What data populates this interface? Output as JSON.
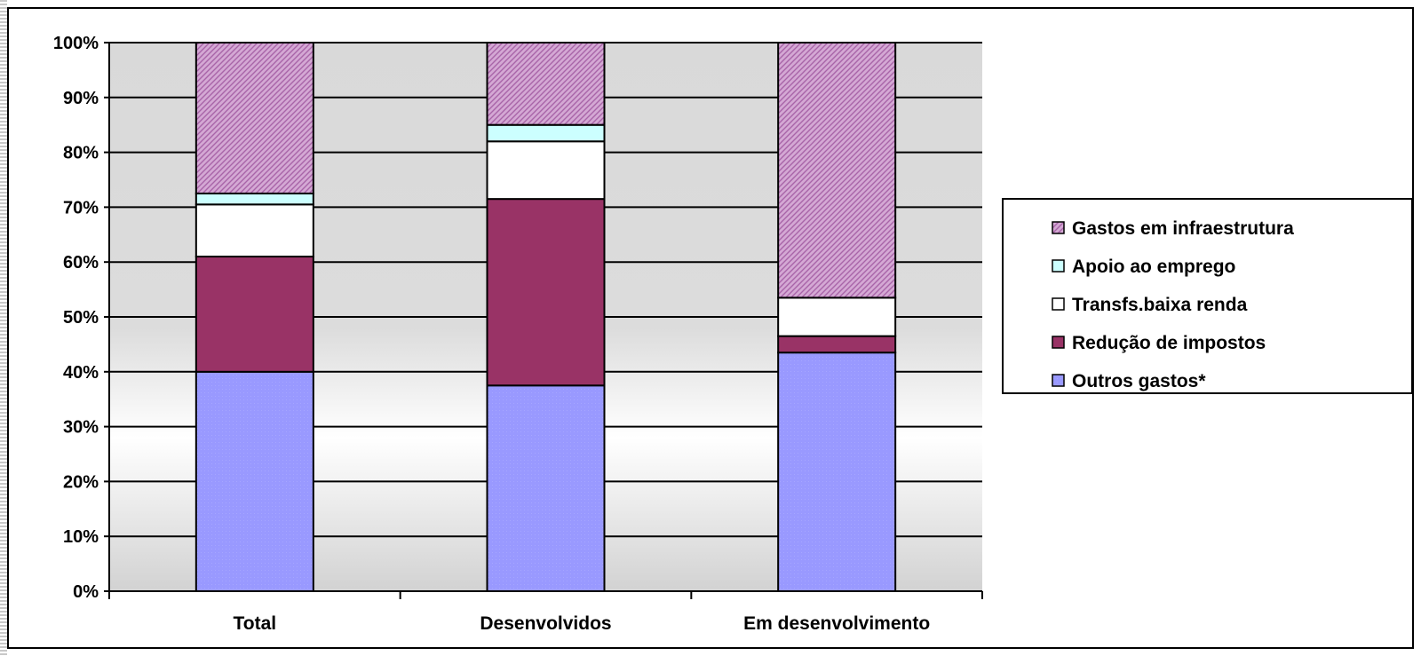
{
  "chart_data": {
    "type": "bar",
    "stacked": true,
    "percent_stacked": true,
    "categories": [
      "Total",
      "Desenvolvidos",
      "Em desenvolvimento"
    ],
    "series": [
      {
        "name": "Outros gastos*",
        "values": [
          40,
          37.5,
          43.5
        ],
        "color": "#9999ff"
      },
      {
        "name": "Redução de impostos",
        "values": [
          21,
          34,
          3
        ],
        "color": "#993366"
      },
      {
        "name": "Transfs.baixa renda",
        "values": [
          9.5,
          10.5,
          7
        ],
        "color": "#ffffff"
      },
      {
        "name": "Apoio ao emprego",
        "values": [
          2,
          3,
          0
        ],
        "color": "#ccffff"
      },
      {
        "name": "Gastos em infraestrutura",
        "values": [
          27.5,
          15,
          46.5
        ],
        "color": "#cc99cc"
      }
    ],
    "y_ticks": [
      "0%",
      "10%",
      "20%",
      "30%",
      "40%",
      "50%",
      "60%",
      "70%",
      "80%",
      "90%",
      "100%"
    ],
    "ylim": [
      0,
      100
    ],
    "grid": true,
    "legend_position": "right"
  }
}
